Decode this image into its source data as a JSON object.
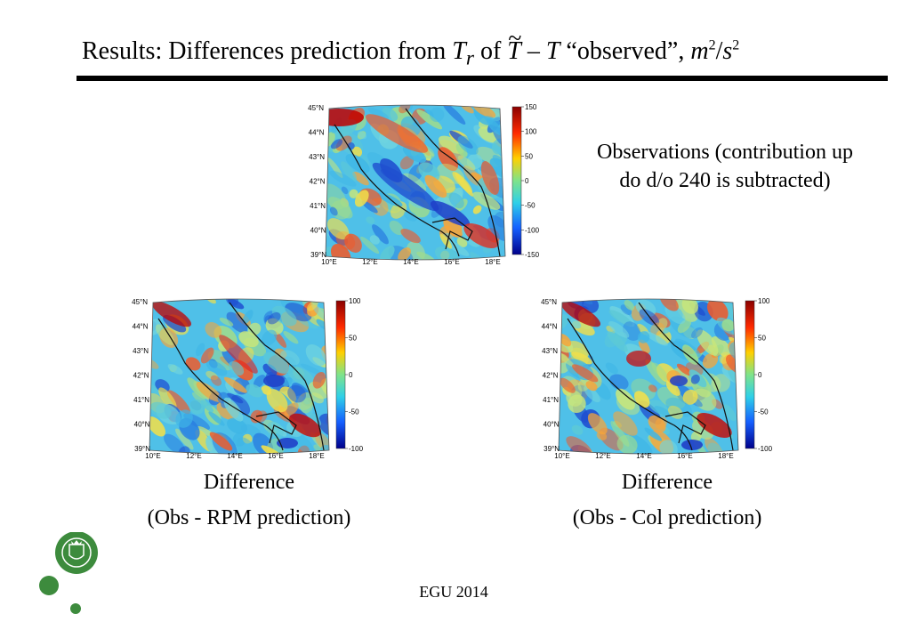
{
  "title": {
    "prefix": "Results: Differences prediction from ",
    "t_r_main": "T",
    "t_r_sub": "r",
    "of": " of ",
    "t_tilde": "T",
    "dash": " – ",
    "t_plain": "T",
    "observed": " “observed”, ",
    "units_m": "m",
    "units_m_exp": "2",
    "units_slash": "/",
    "units_s": "s",
    "units_s_exp": "2"
  },
  "panels": {
    "obs": {
      "caption_line1": "Observations (contribution up",
      "caption_line2": "do d/o 240 is subtracted)",
      "colorbar_ticks": [
        "150",
        "100",
        "50",
        "0",
        "-50",
        "-100",
        "-150"
      ]
    },
    "rpm": {
      "caption_line1": "Difference",
      "caption_line2": "(Obs - RPM prediction)",
      "colorbar_ticks": [
        "100",
        "50",
        "0",
        "-50",
        "-100"
      ]
    },
    "col": {
      "caption_line1": "Difference",
      "caption_line2": "(Obs - Col prediction)",
      "colorbar_ticks": [
        "100",
        "50",
        "0",
        "-50",
        "-100"
      ]
    }
  },
  "map_axes": {
    "lat_labels": [
      "45°N",
      "44°N",
      "43°N",
      "42°N",
      "41°N",
      "40°N",
      "39°N"
    ],
    "lon_labels": [
      "10°E",
      "12°E",
      "14°E",
      "16°E",
      "18°E"
    ]
  },
  "footer": {
    "text": "EGU 2014"
  },
  "colors": {
    "rule": "#000000",
    "logo_green": "#3d8b3d"
  }
}
